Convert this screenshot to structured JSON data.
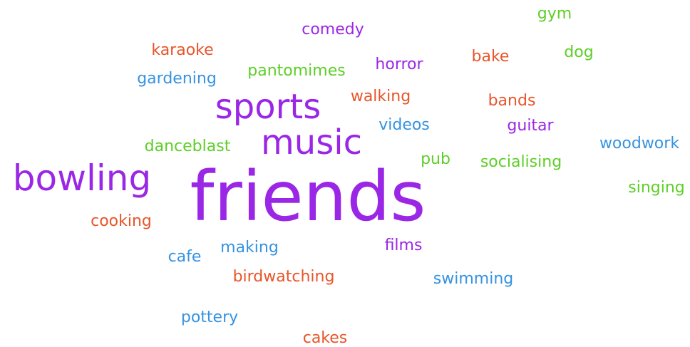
{
  "palette": {
    "purple": "#9b27e6",
    "green": "#5dcf27",
    "orange": "#e8552a",
    "blue": "#3593e0"
  },
  "words": [
    {
      "text": "friends",
      "color": "purple",
      "weight": 10
    },
    {
      "text": "bowling",
      "color": "purple",
      "weight": 6
    },
    {
      "text": "sports",
      "color": "purple",
      "weight": 5
    },
    {
      "text": "music",
      "color": "purple",
      "weight": 5
    },
    {
      "text": "comedy",
      "color": "purple",
      "weight": 2
    },
    {
      "text": "horror",
      "color": "purple",
      "weight": 2
    },
    {
      "text": "guitar",
      "color": "purple",
      "weight": 2
    },
    {
      "text": "films",
      "color": "purple",
      "weight": 2
    },
    {
      "text": "gym",
      "color": "green",
      "weight": 2
    },
    {
      "text": "dog",
      "color": "green",
      "weight": 2
    },
    {
      "text": "pantomimes",
      "color": "green",
      "weight": 2
    },
    {
      "text": "danceblast",
      "color": "green",
      "weight": 2
    },
    {
      "text": "pub",
      "color": "green",
      "weight": 2
    },
    {
      "text": "socialising",
      "color": "green",
      "weight": 2
    },
    {
      "text": "singing",
      "color": "green",
      "weight": 2
    },
    {
      "text": "karaoke",
      "color": "orange",
      "weight": 2
    },
    {
      "text": "bake",
      "color": "orange",
      "weight": 2
    },
    {
      "text": "walking",
      "color": "orange",
      "weight": 2
    },
    {
      "text": "bands",
      "color": "orange",
      "weight": 2
    },
    {
      "text": "cooking",
      "color": "orange",
      "weight": 2
    },
    {
      "text": "birdwatching",
      "color": "orange",
      "weight": 2
    },
    {
      "text": "cakes",
      "color": "orange",
      "weight": 2
    },
    {
      "text": "gardening",
      "color": "blue",
      "weight": 2
    },
    {
      "text": "videos",
      "color": "blue",
      "weight": 2
    },
    {
      "text": "woodwork",
      "color": "blue",
      "weight": 2
    },
    {
      "text": "making",
      "color": "blue",
      "weight": 2
    },
    {
      "text": "cafe",
      "color": "blue",
      "weight": 2
    },
    {
      "text": "swimming",
      "color": "blue",
      "weight": 2
    },
    {
      "text": "pottery",
      "color": "blue",
      "weight": 2
    }
  ]
}
